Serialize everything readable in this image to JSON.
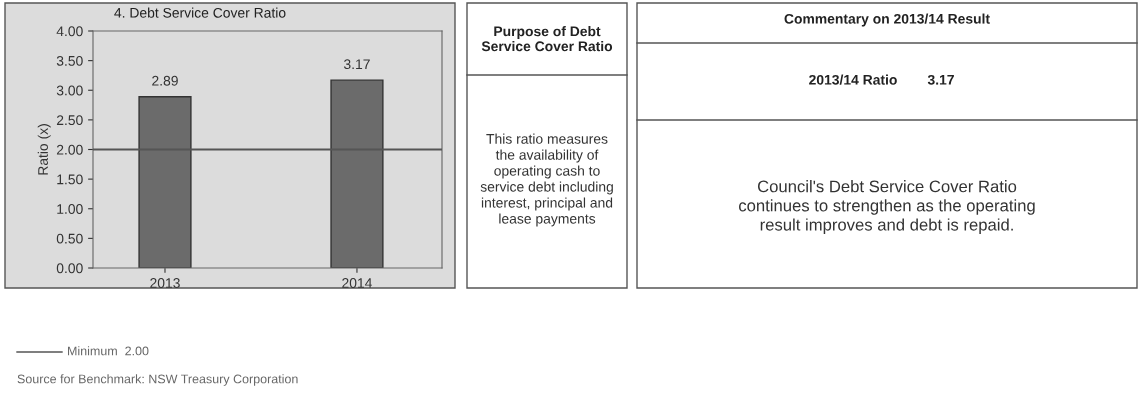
{
  "chart_data": [
    {
      "type": "bar",
      "title": "4. Debt Service Cover Ratio",
      "ylabel": "Ratio (x)",
      "categories": [
        "2013",
        "2014"
      ],
      "values": [
        2.89,
        3.17
      ],
      "color": "#6b6b6b",
      "ylim": [
        0,
        4
      ],
      "yticks": [
        {
          "value": 0,
          "label": "0.00"
        },
        {
          "value": 0.5,
          "label": "0.50"
        },
        {
          "value": 1,
          "label": "1.00"
        },
        {
          "value": 1.5,
          "label": "1.50"
        },
        {
          "value": 2,
          "label": "2.00"
        },
        {
          "value": 2.5,
          "label": "2.50"
        },
        {
          "value": 3,
          "label": "3.00"
        },
        {
          "value": 3.5,
          "label": "3.50"
        },
        {
          "value": 4,
          "label": "4.00"
        }
      ],
      "grid": false,
      "data_labels": true,
      "legend": "bottom",
      "ref_lines": [
        {
          "axis": "y",
          "value": 2,
          "label": "Minimum  2.00",
          "color": "#555555"
        }
      ],
      "annotations": [
        "Source for Benchmark: NSW Treasury Corporation"
      ]
    },
    {
      "type": "other",
      "title": "Purpose of Debt\nService Cover Ratio",
      "annotations": [
        "This ratio measures\nthe availability of\noperating cash to\nservice debt including\ninterest, principal and\nlease payments"
      ]
    },
    {
      "type": "other",
      "title": "Commentary on 2013/14 Result",
      "annotations": [
        "2013/14 Ratio",
        "3.17",
        "Council's Debt Service Cover Ratio\ncontinues to strengthen as the operating\nresult improves and debt is repaid."
      ]
    }
  ]
}
